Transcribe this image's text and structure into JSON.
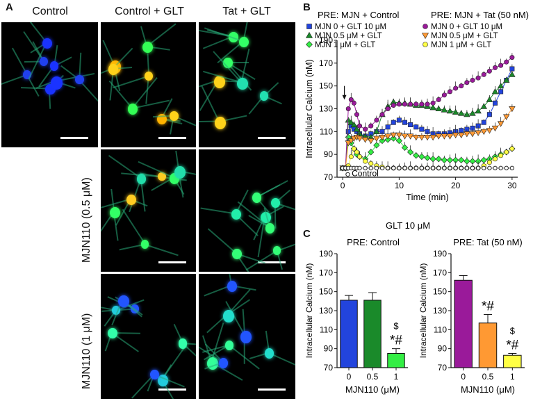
{
  "panelA": {
    "letter": "A",
    "col_headers": [
      "Control",
      "Control + GLT",
      "Tat + GLT"
    ],
    "row_headers": [
      "MJN110 (0.5 μM)",
      "MJN110 (1 μM)"
    ]
  },
  "panelB": {
    "letter": "B",
    "legend_header_left": "PRE: MJN + Control",
    "legend_header_right": "PRE: MJN + Tat (50 nM)",
    "control_label": "Control"
  },
  "panelC": {
    "letter": "C",
    "top_label": "GLT 10 μM",
    "left_title": "PRE: Control",
    "right_title": "PRE: Tat (50 nM)"
  },
  "colors": {
    "blue": "#2244dd",
    "green": "#1a8a2a",
    "lime": "#33ee44",
    "purple": "#9a1a9a",
    "orange": "#ff9933",
    "yellow": "#ffff44"
  },
  "chart_data": [
    {
      "type": "line",
      "xlabel": "Time (min)",
      "ylabel": "Intracellular  Calcium  (nM)",
      "xlim": [
        -1,
        31
      ],
      "ylim": [
        70,
        190
      ],
      "xticks": [
        0,
        10,
        20,
        30
      ],
      "yticks": [
        70,
        90,
        110,
        130,
        150,
        170,
        190
      ],
      "x": [
        0,
        0.5,
        1,
        1.5,
        2,
        2.5,
        3,
        4,
        5,
        6,
        7,
        8,
        9,
        10,
        11,
        12,
        13,
        14,
        15,
        16,
        17,
        18,
        19,
        20,
        21,
        22,
        23,
        24,
        25,
        26,
        27,
        28,
        29,
        30
      ],
      "series": [
        {
          "name": "MJN 0 + GLT 10 μM",
          "color": "#2244dd",
          "marker": "square",
          "values": [
            78,
            78,
            110,
            115,
            112,
            110,
            108,
            106,
            108,
            110,
            110,
            114,
            118,
            120,
            118,
            116,
            114,
            112,
            110,
            108,
            108,
            108,
            109,
            110,
            111,
            112,
            113,
            115,
            118,
            125,
            135,
            145,
            155,
            165
          ]
        },
        {
          "name": "MJN 0.5 μM + GLT",
          "color": "#1a8a2a",
          "marker": "triangle",
          "values": [
            78,
            78,
            120,
            118,
            116,
            112,
            108,
            106,
            105,
            110,
            125,
            132,
            136,
            135,
            135,
            134,
            133,
            133,
            132,
            131,
            130,
            129,
            128,
            127,
            126,
            125,
            126,
            128,
            132,
            138,
            145,
            150,
            155,
            160
          ]
        },
        {
          "name": "MJN 1 μM + GLT",
          "color": "#33ee44",
          "marker": "diamond",
          "values": [
            78,
            78,
            105,
            100,
            95,
            90,
            88,
            86,
            92,
            98,
            102,
            103,
            104,
            102,
            96,
            92,
            89,
            88,
            87,
            86,
            86,
            85,
            85,
            85,
            85,
            84,
            84,
            84,
            85,
            86,
            88,
            90,
            92,
            95
          ]
        },
        {
          "name": "MJN 0 + GLT 10 μM",
          "color": "#9a1a9a",
          "marker": "circle",
          "values": [
            78,
            78,
            130,
            138,
            135,
            125,
            115,
            112,
            115,
            120,
            125,
            130,
            133,
            134,
            134,
            134,
            134,
            134,
            134,
            135,
            138,
            142,
            145,
            148,
            150,
            153,
            155,
            157,
            160,
            163,
            166,
            168,
            171,
            175
          ]
        },
        {
          "name": "MJN 0.5 μM + GLT",
          "color": "#ff9933",
          "marker": "invtriangle",
          "values": [
            78,
            78,
            100,
            102,
            104,
            105,
            104,
            103,
            102,
            104,
            105,
            106,
            107,
            107,
            106,
            106,
            105,
            105,
            105,
            105,
            106,
            106,
            106,
            107,
            107,
            108,
            108,
            109,
            110,
            111,
            113,
            117,
            123,
            130
          ]
        },
        {
          "name": "MJN 1 μM + GLT",
          "color": "#ffff44",
          "marker": "circle",
          "values": [
            78,
            78,
            80,
            88,
            95,
            92,
            88,
            84,
            82,
            80,
            79,
            78,
            78,
            78,
            78,
            78,
            78,
            78,
            78,
            78,
            78,
            78,
            78,
            78,
            78,
            78,
            78,
            78,
            80,
            83,
            86,
            89,
            92,
            95
          ]
        },
        {
          "name": "Control",
          "color": "#ffffff",
          "marker": "open-circle",
          "values": [
            78,
            78,
            78,
            78,
            78,
            78,
            78,
            78,
            78,
            78,
            78,
            78,
            78,
            78,
            78,
            78,
            78,
            78,
            78,
            78,
            78,
            78,
            78,
            78,
            78,
            78,
            78,
            78,
            78,
            78,
            78,
            78,
            78,
            78
          ]
        }
      ],
      "annotation": "arrow at time 0"
    },
    {
      "type": "bar",
      "title": "PRE: Control",
      "xlabel": "MJN110 (μM)",
      "ylabel": "Intracellular Calcium (nM)",
      "ylim": [
        70,
        190
      ],
      "yticks": [
        70,
        90,
        110,
        130,
        150,
        170,
        190
      ],
      "categories": [
        "0",
        "0.5",
        "1"
      ],
      "values": [
        141,
        141,
        85
      ],
      "errors": [
        5,
        8,
        5
      ],
      "colors": [
        "#2244dd",
        "#1a8a2a",
        "#33ee44"
      ],
      "annotations": [
        "",
        "",
        "$\n*#"
      ]
    },
    {
      "type": "bar",
      "title": "PRE: Tat (50 nM)",
      "xlabel": "MJN110 (μM)",
      "ylabel": "Intracellular Calcium (nM)",
      "ylim": [
        70,
        190
      ],
      "yticks": [
        70,
        90,
        110,
        130,
        150,
        170,
        190
      ],
      "categories": [
        "0",
        "0.5",
        "1"
      ],
      "values": [
        162,
        117,
        83
      ],
      "errors": [
        5,
        9,
        2
      ],
      "colors": [
        "#9a1a9a",
        "#ff9933",
        "#ffff44"
      ],
      "annotations": [
        "",
        "*#",
        "$\n*#"
      ]
    }
  ]
}
